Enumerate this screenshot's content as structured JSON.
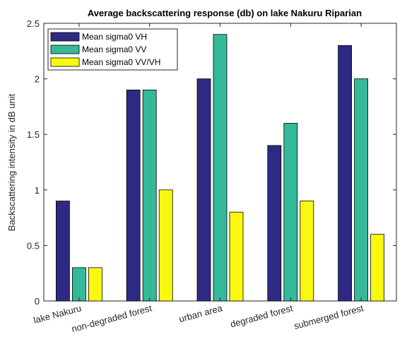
{
  "chart_data": {
    "type": "bar",
    "title": "Average backscattering response (db) on lake Nakuru Riparian",
    "xlabel": "",
    "ylabel": "Backscattering intensity in dB unit",
    "categories": [
      "lake Nakuru",
      "non-degraded forest",
      "urban area",
      "degraded forest",
      "submerged forest"
    ],
    "series": [
      {
        "name": "Mean sigma0 VH",
        "color": "#2e2a84",
        "values": [
          0.9,
          1.9,
          2.0,
          1.4,
          2.3
        ]
      },
      {
        "name": "Mean sigma0 VV",
        "color": "#34b999",
        "values": [
          0.3,
          1.9,
          2.4,
          1.6,
          2.0
        ]
      },
      {
        "name": "Mean sigma0 VV/VH",
        "color": "#f9f90f",
        "values": [
          0.3,
          1.0,
          0.8,
          0.9,
          0.6
        ]
      }
    ],
    "ylim": [
      0,
      2.5
    ],
    "yticks": [
      "0",
      "0.5",
      "1",
      "1.5",
      "2",
      "2.5"
    ],
    "legend_position": "top-left",
    "grid": false
  }
}
